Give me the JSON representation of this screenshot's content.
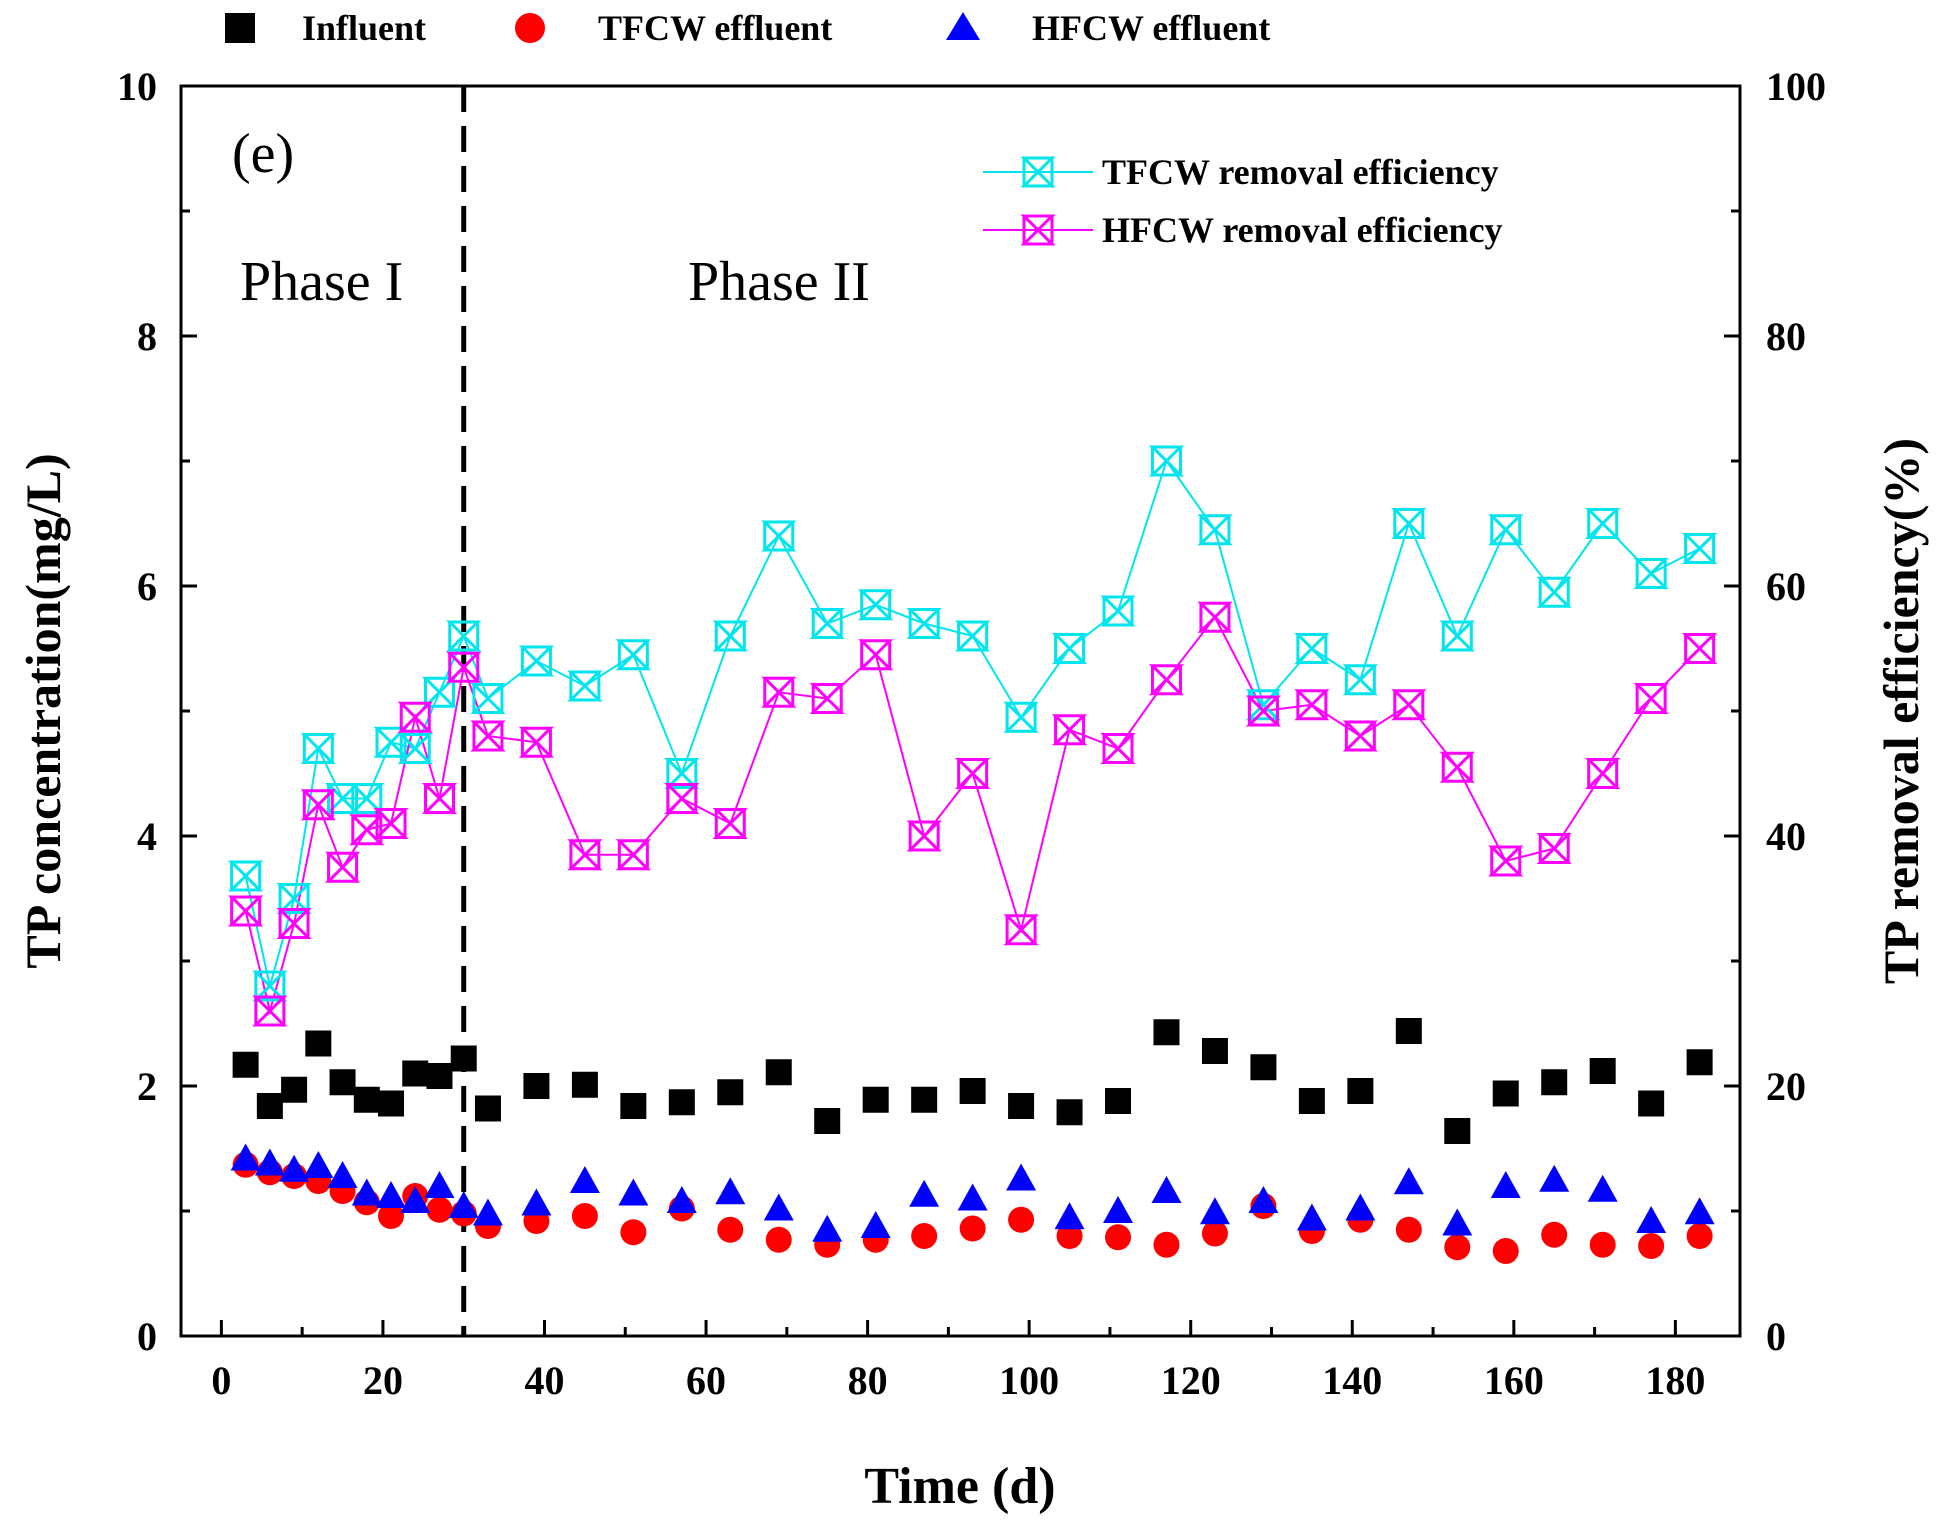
{
  "chart_data": {
    "type": "scatter+line",
    "panel_label": "(e)",
    "xlabel": "Time (d)",
    "ylabel_left": "TP concentration(mg/L)",
    "ylabel_right": "TP removal efficiency(%)",
    "xlim": [
      -5,
      188
    ],
    "ylim_left": [
      0,
      10
    ],
    "ylim_right": [
      0,
      100
    ],
    "x_ticks": [
      "0",
      "20",
      "40",
      "60",
      "80",
      "100",
      "120",
      "140",
      "160",
      "180"
    ],
    "y_left_ticks": [
      "0",
      "2",
      "4",
      "6",
      "8",
      "10"
    ],
    "y_right_ticks": [
      "0",
      "20",
      "40",
      "60",
      "80",
      "100"
    ],
    "phase_divider_x": 30,
    "phase_labels": [
      "Phase I",
      "Phase II"
    ],
    "colors": {
      "influent": "#000000",
      "tfcw_effluent": "#ff0000",
      "hfcw_effluent": "#0000ff",
      "tfcw_removal": "#00e5ee",
      "hfcw_removal": "#ff00ff"
    },
    "legend_top": [
      "Influent",
      "TFCW effluent",
      "HFCW effluent"
    ],
    "legend_inner": [
      "TFCW removal efficiency",
      "HFCW removal efficiency"
    ],
    "series": [
      {
        "name": "Influent",
        "axis": "left",
        "marker": "square",
        "x": [
          3,
          6,
          9,
          12,
          15,
          18,
          21,
          24,
          27,
          30,
          33,
          39,
          45,
          51,
          57,
          63,
          69,
          75,
          81,
          87,
          93,
          99,
          105,
          111,
          117,
          123,
          129,
          135,
          141,
          147,
          153,
          159,
          165,
          171,
          177,
          183
        ],
        "y": [
          2.17,
          1.84,
          1.97,
          2.34,
          2.03,
          1.89,
          1.86,
          2.1,
          2.08,
          2.22,
          1.82,
          2.0,
          2.01,
          1.84,
          1.87,
          1.95,
          2.11,
          1.72,
          1.89,
          1.89,
          1.96,
          1.84,
          1.79,
          1.88,
          2.43,
          2.28,
          2.15,
          1.88,
          1.96,
          2.44,
          1.64,
          1.94,
          2.03,
          2.12,
          1.86,
          2.19
        ]
      },
      {
        "name": "TFCW effluent",
        "axis": "left",
        "marker": "circle",
        "x": [
          3,
          6,
          9,
          12,
          15,
          18,
          21,
          24,
          27,
          30,
          33,
          39,
          45,
          51,
          57,
          63,
          69,
          75,
          81,
          87,
          93,
          99,
          105,
          111,
          117,
          123,
          129,
          135,
          141,
          147,
          153,
          159,
          165,
          171,
          177,
          183
        ],
        "y": [
          1.37,
          1.31,
          1.28,
          1.24,
          1.16,
          1.07,
          0.96,
          1.12,
          1.01,
          0.98,
          0.88,
          0.92,
          0.96,
          0.83,
          1.02,
          0.85,
          0.77,
          0.73,
          0.77,
          0.8,
          0.86,
          0.93,
          0.8,
          0.79,
          0.73,
          0.82,
          1.04,
          0.84,
          0.93,
          0.85,
          0.71,
          0.68,
          0.81,
          0.73,
          0.72,
          0.8
        ]
      },
      {
        "name": "HFCW effluent",
        "axis": "left",
        "marker": "triangle",
        "x": [
          3,
          6,
          9,
          12,
          15,
          18,
          21,
          24,
          27,
          30,
          33,
          39,
          45,
          51,
          57,
          63,
          69,
          75,
          81,
          87,
          93,
          99,
          105,
          111,
          117,
          123,
          129,
          135,
          141,
          147,
          153,
          159,
          165,
          171,
          177,
          183
        ],
        "y": [
          1.42,
          1.38,
          1.33,
          1.36,
          1.28,
          1.14,
          1.12,
          1.08,
          1.2,
          1.04,
          0.98,
          1.06,
          1.24,
          1.14,
          1.08,
          1.15,
          1.02,
          0.85,
          0.88,
          1.13,
          1.1,
          1.26,
          0.95,
          1.0,
          1.16,
          0.99,
          1.08,
          0.94,
          1.02,
          1.23,
          0.9,
          1.2,
          1.25,
          1.17,
          0.92,
          0.99
        ]
      },
      {
        "name": "TFCW removal efficiency",
        "axis": "right",
        "marker": "star-x",
        "x": [
          3,
          6,
          9,
          12,
          15,
          18,
          21,
          24,
          27,
          30,
          33,
          39,
          45,
          51,
          57,
          63,
          69,
          75,
          81,
          87,
          93,
          99,
          105,
          111,
          117,
          123,
          129,
          135,
          141,
          147,
          153,
          159,
          165,
          171,
          177,
          183
        ],
        "y": [
          36.8,
          28.0,
          35.0,
          47.0,
          43.0,
          43.0,
          47.5,
          47.0,
          51.5,
          56.0,
          51.0,
          54.0,
          52.0,
          54.5,
          45.0,
          56.0,
          64.0,
          57.0,
          58.5,
          57.0,
          56.0,
          49.5,
          55.0,
          58.0,
          70.0,
          64.5,
          50.5,
          55.0,
          52.5,
          65.0,
          56.0,
          64.5,
          59.5,
          65.0,
          61.0,
          63.0
        ]
      },
      {
        "name": "HFCW removal efficiency",
        "axis": "right",
        "marker": "star-x",
        "x": [
          3,
          6,
          9,
          12,
          15,
          18,
          21,
          24,
          27,
          30,
          33,
          39,
          45,
          51,
          57,
          63,
          69,
          75,
          81,
          87,
          93,
          99,
          105,
          111,
          117,
          123,
          129,
          135,
          141,
          147,
          153,
          159,
          165,
          171,
          177,
          183
        ],
        "y": [
          34.0,
          26.0,
          33.0,
          42.5,
          37.5,
          40.5,
          41.0,
          49.5,
          43.0,
          53.5,
          48.0,
          47.5,
          38.5,
          38.5,
          43.0,
          41.0,
          51.5,
          51.0,
          54.5,
          40.0,
          45.0,
          32.5,
          48.5,
          47.0,
          52.5,
          57.5,
          50.0,
          50.5,
          48.0,
          50.5,
          45.5,
          38.0,
          39.0,
          45.0,
          51.0,
          55.0
        ]
      }
    ]
  }
}
